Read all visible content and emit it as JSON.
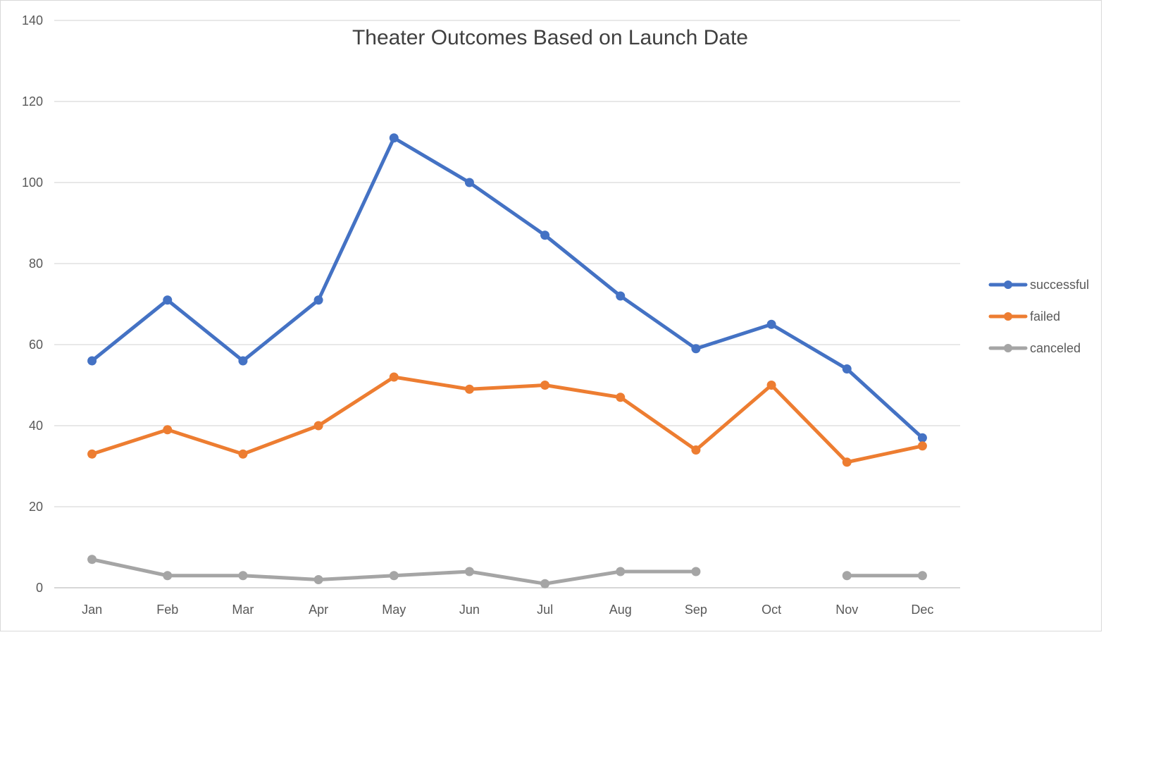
{
  "chart_data": {
    "type": "line",
    "title": "Theater Outcomes Based on Launch Date",
    "xlabel": "",
    "ylabel": "",
    "categories": [
      "Jan",
      "Feb",
      "Mar",
      "Apr",
      "May",
      "Jun",
      "Jul",
      "Aug",
      "Sep",
      "Oct",
      "Nov",
      "Dec"
    ],
    "ylim": [
      0,
      140
    ],
    "yticks": [
      0,
      20,
      40,
      60,
      80,
      100,
      120,
      140
    ],
    "grid": true,
    "legend": "right",
    "series": [
      {
        "name": "successful",
        "color": "#4472c4",
        "values": [
          56,
          71,
          56,
          71,
          111,
          100,
          87,
          72,
          59,
          65,
          54,
          37
        ]
      },
      {
        "name": "failed",
        "color": "#ed7d31",
        "values": [
          33,
          39,
          33,
          40,
          52,
          49,
          50,
          47,
          34,
          50,
          31,
          35
        ]
      },
      {
        "name": "canceled",
        "color": "#a5a5a5",
        "values": [
          7,
          3,
          3,
          2,
          3,
          4,
          1,
          4,
          4,
          null,
          3,
          3
        ]
      }
    ]
  }
}
